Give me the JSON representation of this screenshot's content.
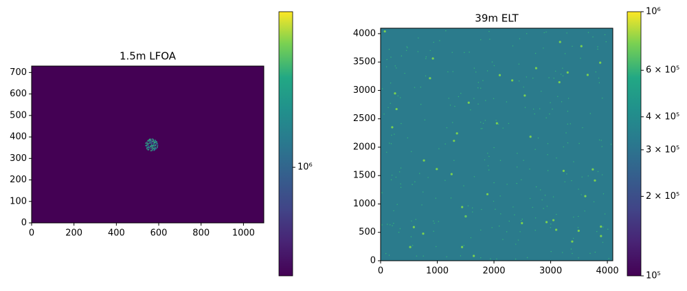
{
  "chart_data": [
    {
      "type": "image",
      "title": "1.5m LFOA",
      "background": "#440154",
      "xlim": [
        0,
        1096
      ],
      "ylim": [
        0,
        730
      ],
      "xticks": [
        0,
        200,
        400,
        600,
        800,
        1000
      ],
      "yticks": [
        0,
        100,
        200,
        300,
        400,
        500,
        600,
        700
      ],
      "colorbar": {
        "scale": "log",
        "colormap": "viridis",
        "lim": [
          500000,
          2700000
        ],
        "ticks": [
          {
            "value": 1000000,
            "label": "10⁶"
          }
        ]
      }
    },
    {
      "type": "image",
      "title": "39m ELT",
      "background": "#2b7b8c",
      "xlim": [
        0,
        4096
      ],
      "ylim": [
        0,
        4096
      ],
      "xticks": [
        0,
        1000,
        2000,
        3000,
        4000
      ],
      "yticks": [
        0,
        500,
        1000,
        1500,
        2000,
        2500,
        3000,
        3500,
        4000
      ],
      "colorbar": {
        "scale": "log",
        "colormap": "viridis",
        "lim": [
          100000,
          1000000
        ],
        "ticks": [
          {
            "value": 100000,
            "label": "10⁵"
          },
          {
            "value": 200000,
            "label": "2 × 10⁵"
          },
          {
            "value": 300000,
            "label": "3 × 10⁵"
          },
          {
            "value": 400000,
            "label": "4 × 10⁵"
          },
          {
            "value": 600000,
            "label": "6 × 10⁵"
          },
          {
            "value": 1000000,
            "label": "10⁶"
          }
        ]
      }
    }
  ]
}
